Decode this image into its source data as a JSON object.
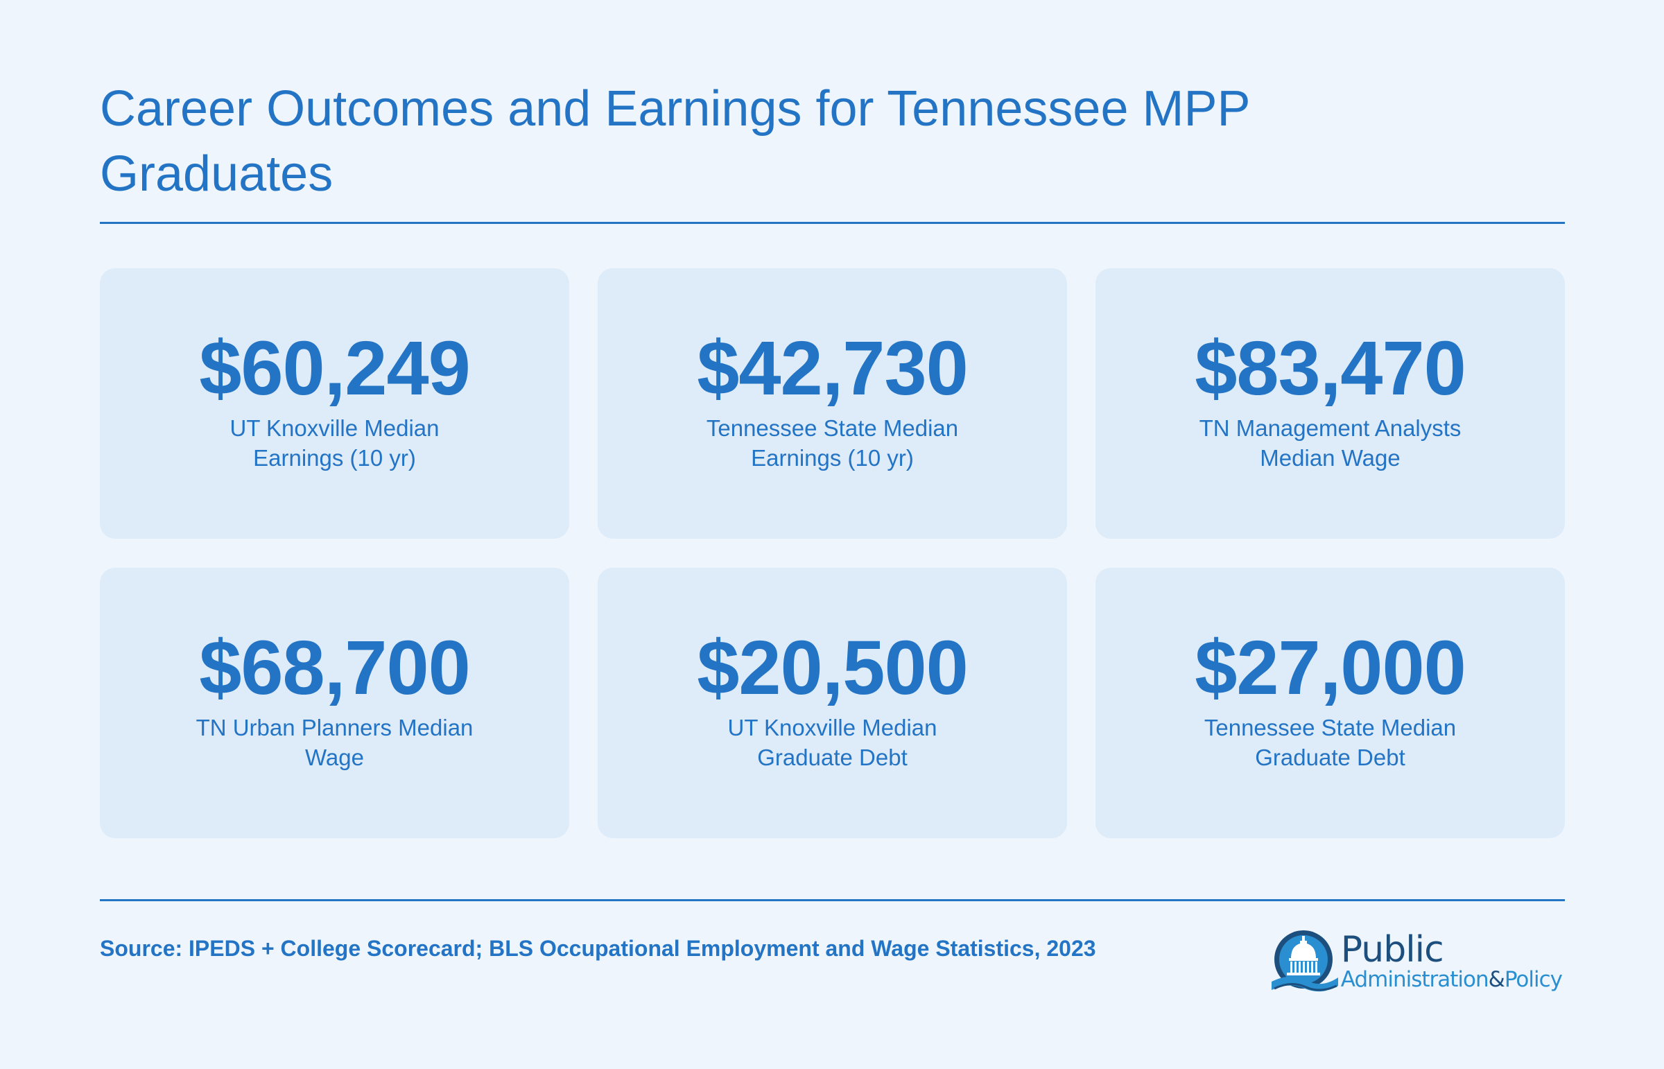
{
  "header": {
    "title": "Career Outcomes and Earnings for Tennessee MPP Graduates"
  },
  "stats": [
    {
      "value": "$60,249",
      "label": "UT Knoxville Median Earnings (10 yr)"
    },
    {
      "value": "$42,730",
      "label": "Tennessee State Median Earnings (10 yr)"
    },
    {
      "value": "$83,470",
      "label": "TN Management Analysts Median Wage"
    },
    {
      "value": "$68,700",
      "label": "TN Urban Planners Median Wage"
    },
    {
      "value": "$20,500",
      "label": "UT Knoxville Median Graduate Debt"
    },
    {
      "value": "$27,000",
      "label": "Tennessee State Median Graduate Debt"
    }
  ],
  "footer": {
    "source": "Source: IPEDS + College Scorecard; BLS Occupational Employment and Wage Statistics, 2023"
  },
  "logo": {
    "word1": "Public",
    "word2a": "Administration",
    "amp": "&",
    "word2b": "Policy",
    "icon": "capitol-dome-icon"
  },
  "colors": {
    "background": "#eef5fc",
    "card": "#deebf8",
    "accent": "#2374c5",
    "logo_dark": "#1d4f7e",
    "logo_light": "#2a8fd0"
  }
}
